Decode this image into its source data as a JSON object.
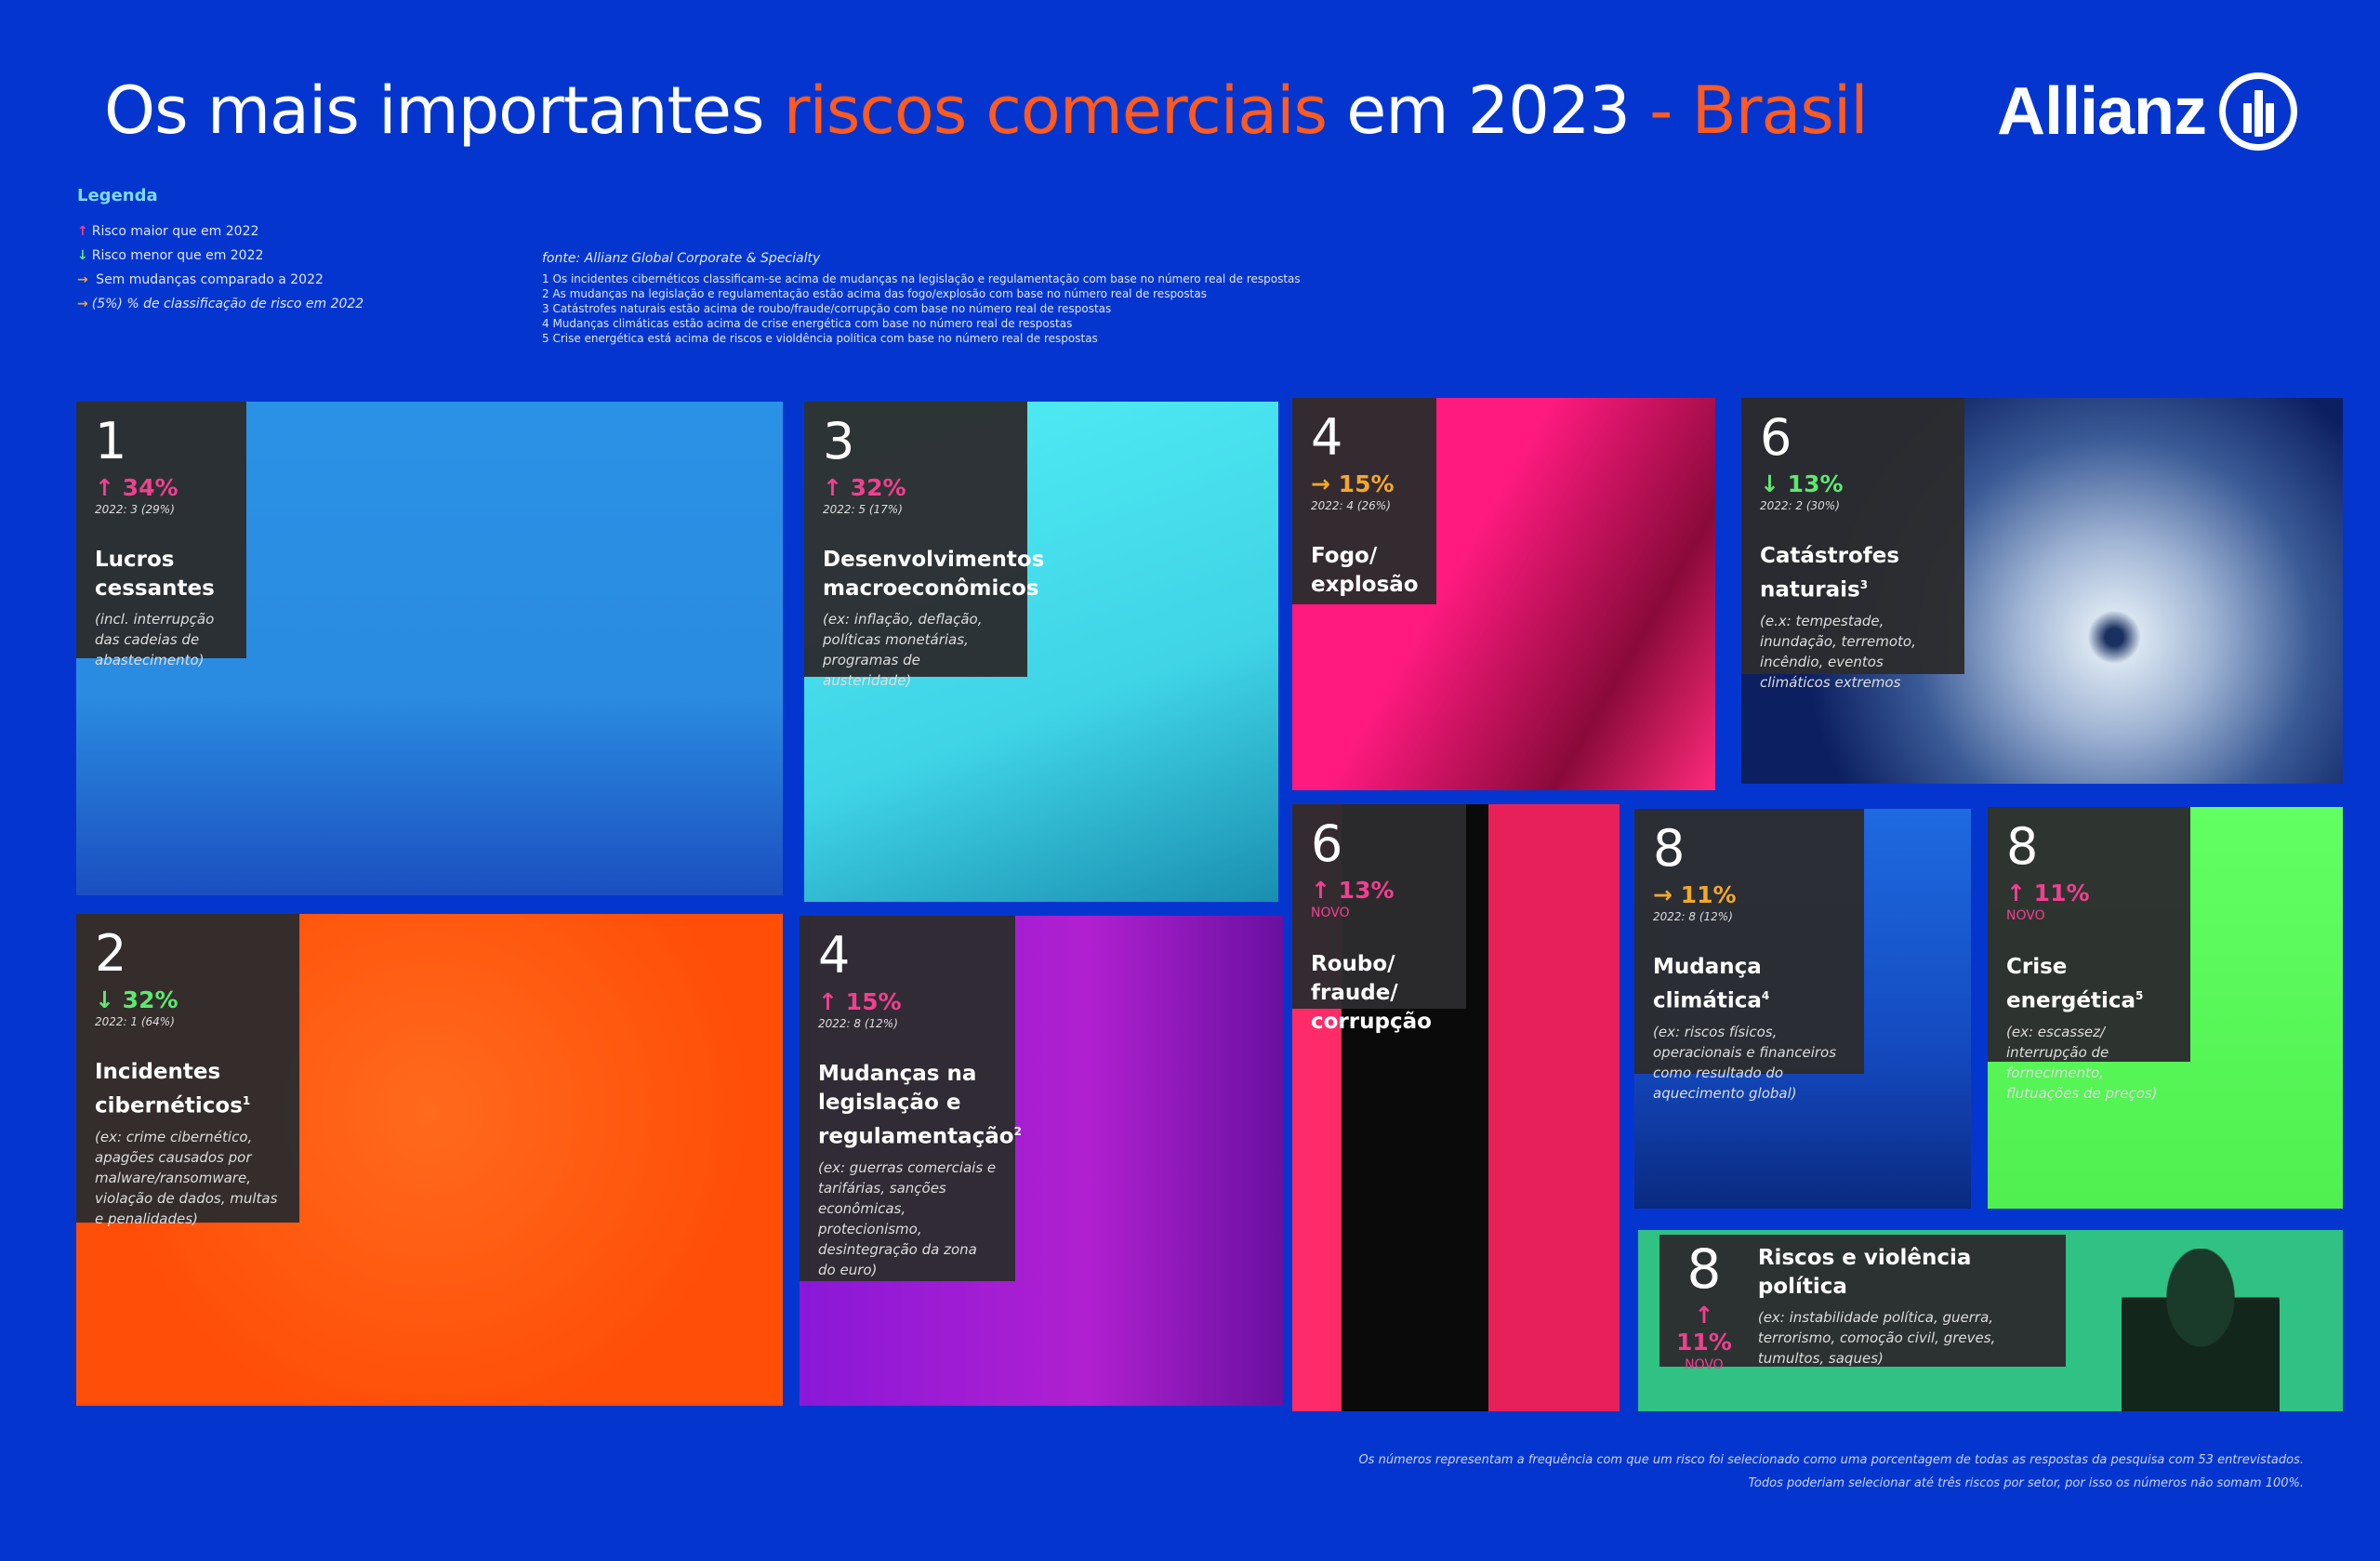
{
  "header": {
    "title_a": "Os mais importantes ",
    "title_b": "riscos comerciais",
    "title_c": " em 2023",
    "title_d": " - Brasil",
    "logo": "Allianz"
  },
  "legend": {
    "title": "Legenda",
    "items": [
      {
        "icon": "arrow-up",
        "arrow": "↑",
        "text": "Risco maior que em 2022"
      },
      {
        "icon": "arrow-down",
        "arrow": "↓",
        "text": "Risco menor que em 2022"
      },
      {
        "icon": "arrow-right",
        "arrow": "→",
        "text": " Sem mudanças comparado a  2022"
      },
      {
        "icon": "arrow-right",
        "arrow": "→",
        "text": "(5%) % de classificação de risco em 2022"
      }
    ]
  },
  "notes": {
    "source": "fonte: Allianz Global Corporate & Specialty",
    "items": [
      "1 Os incidentes cibernéticos classificam-se acima de  mudanças na legislação e regulamentação com base no número real de respostas",
      "2 As mudanças na legislação e regulamentação estão acima das fogo/explosão com base no número real de respostas",
      "3 Catástrofes naturais estão acima de roubo/fraude/corrupção com base no número real de respostas",
      "4 Mudanças climáticas estão acima de crise energética com base no número real de respostas",
      "5 Crise energética está acima de riscos e violdência política com base no número real de respostas"
    ]
  },
  "colors": {
    "background": "#0436cf",
    "up": "#f0408f",
    "down": "#5ee870",
    "same": "#f3a82a",
    "accent": "#ff5a1f"
  },
  "cards": [
    {
      "rank": "1",
      "arrow": "↑",
      "trend": "up",
      "pct": "34%",
      "prev": "2022: 3 (29%)",
      "name": "Lucros cessantes",
      "sup": "",
      "desc": "(incl. interrupção das cadeias de abastecimento)"
    },
    {
      "rank": "3",
      "arrow": "↑",
      "trend": "up",
      "pct": "32%",
      "prev": "2022: 5 (17%)",
      "name": "Desenvolvimentos macroeconômicos",
      "sup": "",
      "desc": "(ex: inflação, deflação, políticas monetárias, programas de austeridade)"
    },
    {
      "rank": "4",
      "arrow": "→",
      "trend": "same",
      "pct": "15%",
      "prev": "2022: 4 (26%)",
      "name": "Fogo/ explosão",
      "sup": "",
      "desc": ""
    },
    {
      "rank": "6",
      "arrow": "↓",
      "trend": "down",
      "pct": "13%",
      "prev": "2022: 2 (30%)",
      "name": "Catástrofes naturais",
      "sup": "3",
      "desc": "(e.x: tempestade, inundação, terremoto, incêndio, eventos climáticos extremos"
    },
    {
      "rank": "2",
      "arrow": "↓",
      "trend": "down",
      "pct": "32%",
      "prev": "2022: 1 (64%)",
      "name": "Incidentes cibernéticos",
      "sup": "1",
      "desc": "(ex: crime cibernético, apagões causados por malware/ransomware, violação de dados, multas e penalidades)"
    },
    {
      "rank": "4",
      "arrow": "↑",
      "trend": "up",
      "pct": "15%",
      "prev": "2022: 8 (12%)",
      "name": "Mudanças na legislação e regulamentação",
      "sup": "2",
      "desc": "(ex: guerras comerciais e tarifárias, sanções econômicas, protecionismo, desintegração da zona do euro)"
    },
    {
      "rank": "6",
      "arrow": "↑",
      "trend": "up",
      "pct": "13%",
      "prev": "NOVO",
      "name": "Roubo/ fraude/ corrupção",
      "sup": "",
      "desc": ""
    },
    {
      "rank": "8",
      "arrow": "→",
      "trend": "same",
      "pct": "11%",
      "prev": "2022: 8 (12%)",
      "name": "Mudança climática",
      "sup": "4",
      "desc": "(ex: riscos físicos, operacionais e financeiros como resultado do aquecimento global)"
    },
    {
      "rank": "8",
      "arrow": "↑",
      "trend": "up",
      "pct": "11%",
      "prev": "NOVO",
      "name": "Crise energética",
      "sup": "5",
      "desc": "(ex: escassez/ interrupção de fornecimento, flutuações de preços)"
    },
    {
      "rank": "8",
      "arrow": "↑",
      "trend": "up",
      "pct": "11%",
      "prev": "NOVO",
      "name": "Riscos e violência política",
      "sup": "",
      "desc": "(ex: instabilidade política, guerra, terrorismo, comoção civil, greves, tumultos, saques)"
    }
  ],
  "footer": {
    "line1": "Os números representam a frequência com que um risco foi selecionado como uma porcentagem de todas as respostas da pesquisa com 53 entrevistados.",
    "line2": "Todos poderiam selecionar até três riscos por setor, por isso os números não somam 100%."
  }
}
